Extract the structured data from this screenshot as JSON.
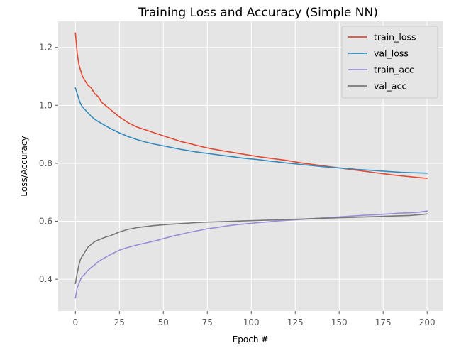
{
  "chart_data": {
    "type": "line",
    "title": "Training Loss and Accuracy (Simple NN)",
    "xlabel": "Epoch #",
    "ylabel": "Loss/Accuracy",
    "xlim": [
      -9.8,
      208.8
    ],
    "ylim": [
      0.29,
      1.29
    ],
    "x_ticks": [
      0,
      25,
      50,
      75,
      100,
      125,
      150,
      175,
      200
    ],
    "y_ticks": [
      0.4,
      0.6,
      0.8,
      1.0,
      1.2
    ],
    "x_tick_labels": [
      "0",
      "25",
      "50",
      "75",
      "100",
      "125",
      "150",
      "175",
      "200"
    ],
    "y_tick_labels": [
      "0.4",
      "0.6",
      "0.8",
      "1.0",
      "1.2"
    ],
    "grid": true,
    "legend_position": "top-right",
    "series": [
      {
        "name": "train_loss",
        "color": "#e24a33",
        "x": [
          0,
          1,
          2,
          3,
          4,
          5,
          7,
          9,
          11,
          13,
          15,
          17,
          20,
          25,
          30,
          35,
          40,
          45,
          50,
          55,
          60,
          65,
          70,
          75,
          80,
          85,
          90,
          95,
          100,
          105,
          110,
          115,
          120,
          125,
          130,
          135,
          140,
          145,
          150,
          155,
          160,
          165,
          170,
          175,
          180,
          185,
          190,
          195,
          200
        ],
        "y": [
          1.25,
          1.18,
          1.14,
          1.12,
          1.1,
          1.09,
          1.07,
          1.06,
          1.04,
          1.03,
          1.01,
          1.0,
          0.985,
          0.96,
          0.94,
          0.925,
          0.915,
          0.905,
          0.895,
          0.885,
          0.875,
          0.868,
          0.86,
          0.853,
          0.847,
          0.842,
          0.837,
          0.832,
          0.827,
          0.822,
          0.818,
          0.814,
          0.81,
          0.805,
          0.8,
          0.796,
          0.792,
          0.788,
          0.784,
          0.78,
          0.776,
          0.772,
          0.768,
          0.764,
          0.76,
          0.757,
          0.754,
          0.751,
          0.748
        ]
      },
      {
        "name": "val_loss",
        "color": "#348abd",
        "x": [
          0,
          1,
          2,
          3,
          4,
          5,
          7,
          9,
          11,
          13,
          15,
          17,
          20,
          25,
          30,
          35,
          40,
          45,
          50,
          55,
          60,
          65,
          70,
          75,
          80,
          85,
          90,
          95,
          100,
          105,
          110,
          115,
          120,
          125,
          130,
          135,
          140,
          145,
          150,
          155,
          160,
          165,
          170,
          175,
          180,
          185,
          190,
          195,
          200
        ],
        "y": [
          1.06,
          1.04,
          1.02,
          1.005,
          0.995,
          0.988,
          0.975,
          0.962,
          0.952,
          0.944,
          0.937,
          0.93,
          0.92,
          0.905,
          0.892,
          0.882,
          0.873,
          0.866,
          0.86,
          0.854,
          0.848,
          0.843,
          0.838,
          0.834,
          0.83,
          0.826,
          0.822,
          0.818,
          0.815,
          0.812,
          0.808,
          0.805,
          0.801,
          0.798,
          0.795,
          0.792,
          0.789,
          0.786,
          0.784,
          0.782,
          0.779,
          0.777,
          0.775,
          0.773,
          0.771,
          0.769,
          0.768,
          0.767,
          0.766
        ]
      },
      {
        "name": "train_acc",
        "color": "#988ed5",
        "x": [
          0,
          1,
          2,
          3,
          4,
          5,
          7,
          9,
          11,
          13,
          15,
          17,
          20,
          25,
          30,
          35,
          40,
          45,
          50,
          55,
          60,
          65,
          70,
          75,
          80,
          85,
          90,
          95,
          100,
          105,
          110,
          115,
          120,
          125,
          130,
          135,
          140,
          145,
          150,
          155,
          160,
          165,
          170,
          175,
          180,
          185,
          190,
          195,
          200
        ],
        "y": [
          0.335,
          0.37,
          0.385,
          0.4,
          0.41,
          0.415,
          0.43,
          0.44,
          0.45,
          0.46,
          0.468,
          0.475,
          0.485,
          0.5,
          0.51,
          0.518,
          0.525,
          0.532,
          0.54,
          0.548,
          0.555,
          0.562,
          0.568,
          0.574,
          0.578,
          0.583,
          0.587,
          0.59,
          0.593,
          0.596,
          0.598,
          0.601,
          0.603,
          0.605,
          0.607,
          0.609,
          0.611,
          0.613,
          0.615,
          0.617,
          0.619,
          0.621,
          0.622,
          0.624,
          0.626,
          0.628,
          0.629,
          0.631,
          0.635
        ]
      },
      {
        "name": "val_acc",
        "color": "#777777",
        "x": [
          0,
          1,
          2,
          3,
          4,
          5,
          7,
          9,
          11,
          13,
          15,
          17,
          20,
          25,
          30,
          35,
          40,
          45,
          50,
          55,
          60,
          65,
          70,
          75,
          80,
          85,
          90,
          95,
          100,
          105,
          110,
          115,
          120,
          125,
          130,
          135,
          140,
          145,
          150,
          155,
          160,
          165,
          170,
          175,
          180,
          185,
          190,
          195,
          200
        ],
        "y": [
          0.385,
          0.42,
          0.45,
          0.47,
          0.48,
          0.49,
          0.51,
          0.52,
          0.53,
          0.535,
          0.54,
          0.545,
          0.55,
          0.563,
          0.572,
          0.578,
          0.582,
          0.585,
          0.588,
          0.59,
          0.592,
          0.594,
          0.596,
          0.597,
          0.598,
          0.599,
          0.6,
          0.601,
          0.602,
          0.603,
          0.604,
          0.605,
          0.606,
          0.607,
          0.608,
          0.609,
          0.61,
          0.611,
          0.612,
          0.613,
          0.614,
          0.615,
          0.616,
          0.617,
          0.618,
          0.619,
          0.62,
          0.622,
          0.625
        ]
      }
    ]
  }
}
